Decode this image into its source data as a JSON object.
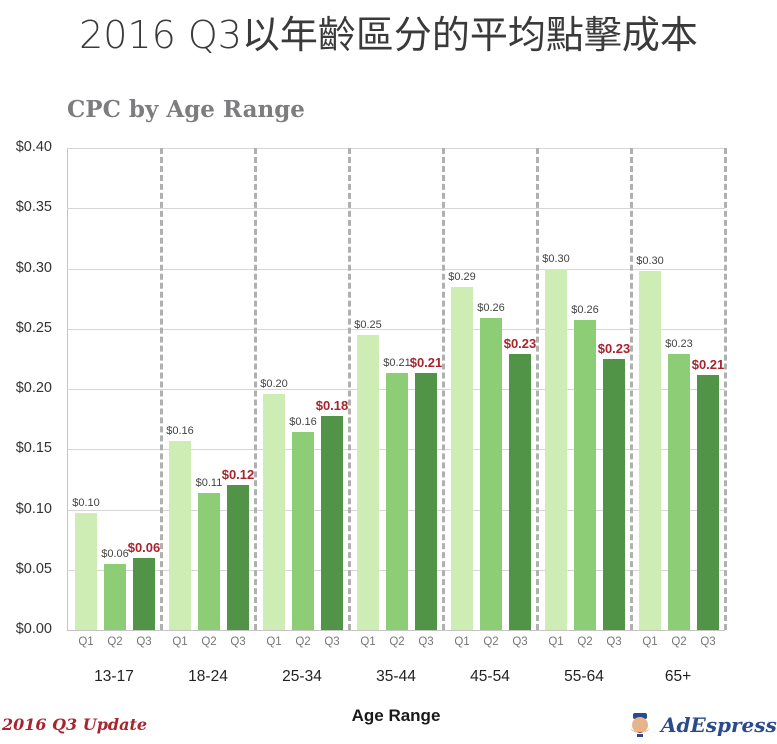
{
  "header": {
    "title": "2016 Q3以年齡區分的平均點擊成本"
  },
  "chart_title": "CPC by Age Range",
  "x_axis_title": "Age Range",
  "footer": {
    "left_text": "2016 Q3 Update",
    "brand": "AdEspresso"
  },
  "colors": {
    "Q1": "#cdedb5",
    "Q2": "#8dcd76",
    "Q3": "#529447",
    "highlight_label": "#a8242e"
  },
  "y_ticks": [
    "$0.00",
    "$0.05",
    "$0.10",
    "$0.15",
    "$0.20",
    "$0.25",
    "$0.30",
    "$0.35",
    "$0.40"
  ],
  "chart_data": {
    "type": "bar",
    "title": "CPC by Age Range",
    "xlabel": "Age Range",
    "ylabel": "",
    "ylim": [
      0,
      0.4
    ],
    "y_tick_format": "$0.00",
    "grid": true,
    "categories": [
      "13-17",
      "18-24",
      "25-34",
      "35-44",
      "45-54",
      "55-64",
      "65+"
    ],
    "sub_categories": [
      "Q1",
      "Q2",
      "Q3"
    ],
    "series": [
      {
        "name": "Q1",
        "values": [
          0.097,
          0.157,
          0.196,
          0.245,
          0.285,
          0.3,
          0.298
        ],
        "labels": [
          "$0.10",
          "$0.16",
          "$0.20",
          "$0.25",
          "$0.29",
          "$0.30",
          "$0.30"
        ]
      },
      {
        "name": "Q2",
        "values": [
          0.055,
          0.114,
          0.164,
          0.213,
          0.259,
          0.257,
          0.229
        ],
        "labels": [
          "$0.06",
          "$0.11",
          "$0.16",
          "$0.21",
          "$0.26",
          "$0.26",
          "$0.23"
        ]
      },
      {
        "name": "Q3",
        "values": [
          0.06,
          0.12,
          0.178,
          0.213,
          0.229,
          0.225,
          0.212
        ],
        "labels": [
          "$0.06",
          "$0.12",
          "$0.18",
          "$0.21",
          "$0.23",
          "$0.23",
          "$0.21"
        ],
        "label_highlight": true
      }
    ],
    "legend": "none (Q labels beneath bars)"
  }
}
